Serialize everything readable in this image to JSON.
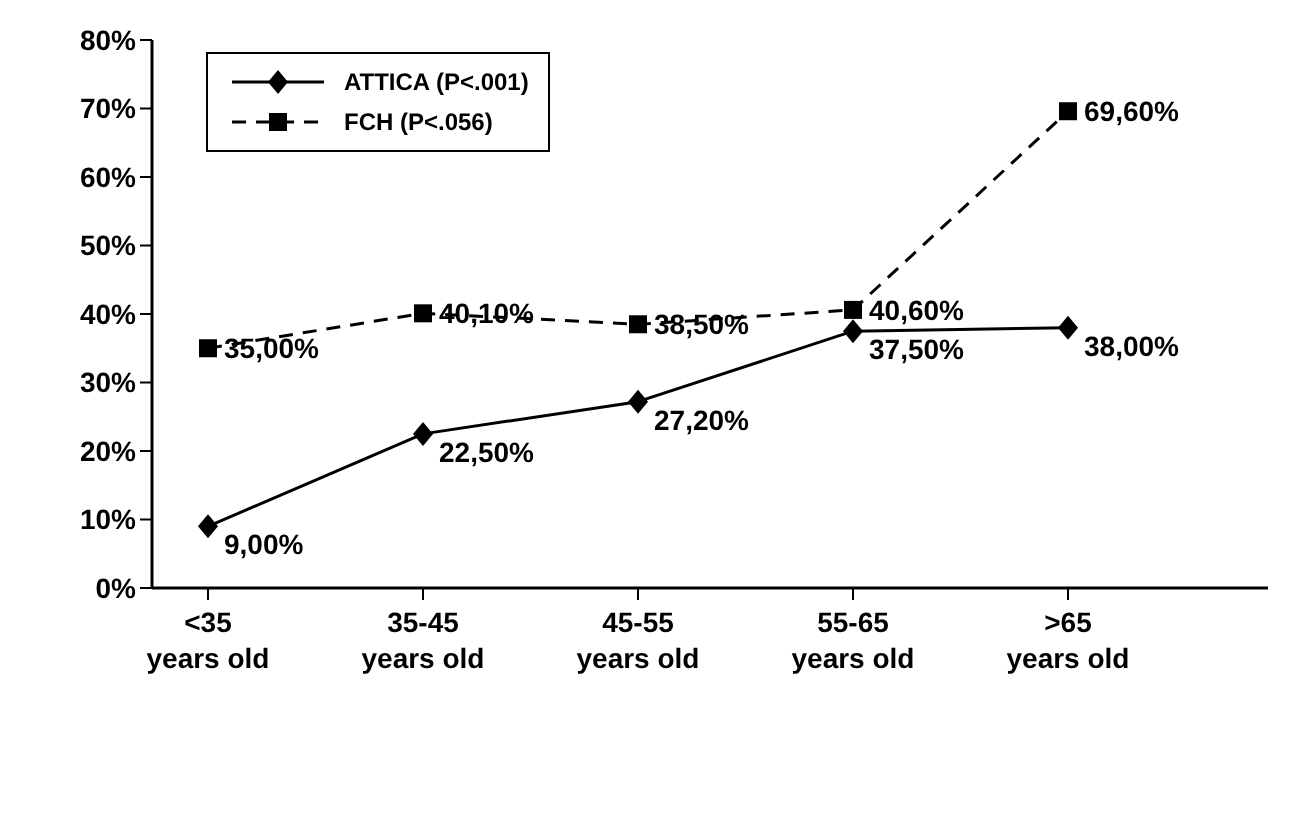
{
  "chart_data": {
    "type": "line",
    "categories": [
      "<35 years old",
      "35-45 years old",
      "45-55 years old",
      "55-65 years old",
      ">65 years old"
    ],
    "series": [
      {
        "name": "ATTICA (P<.001)",
        "color": "#000000",
        "marker": "diamond",
        "line_style": "solid",
        "values": [
          9,
          22.5,
          27.2,
          37.5,
          38
        ],
        "value_labels": [
          "9,00%",
          "22,50%",
          "27,20%",
          "37,50%",
          "38,00%"
        ]
      },
      {
        "name": "FCH (P<.056)",
        "color": "#000000",
        "marker": "square",
        "line_style": "dashed",
        "values": [
          35,
          40.1,
          38.5,
          40.6,
          69.6
        ],
        "value_labels": [
          "35,00%",
          "40,10%",
          "38,50%",
          "40,60%",
          "69,60%"
        ]
      }
    ],
    "ylim": [
      0,
      80
    ],
    "yticks": [
      {
        "value": 0,
        "label": "0%"
      },
      {
        "value": 10,
        "label": "10%"
      },
      {
        "value": 20,
        "label": "20%"
      },
      {
        "value": 30,
        "label": "30%"
      },
      {
        "value": 40,
        "label": "40%"
      },
      {
        "value": 50,
        "label": "50%"
      },
      {
        "value": 60,
        "label": "60%"
      },
      {
        "value": 70,
        "label": "70%"
      },
      {
        "value": 80,
        "label": "80%"
      }
    ],
    "grid": false,
    "legend": "top left"
  }
}
